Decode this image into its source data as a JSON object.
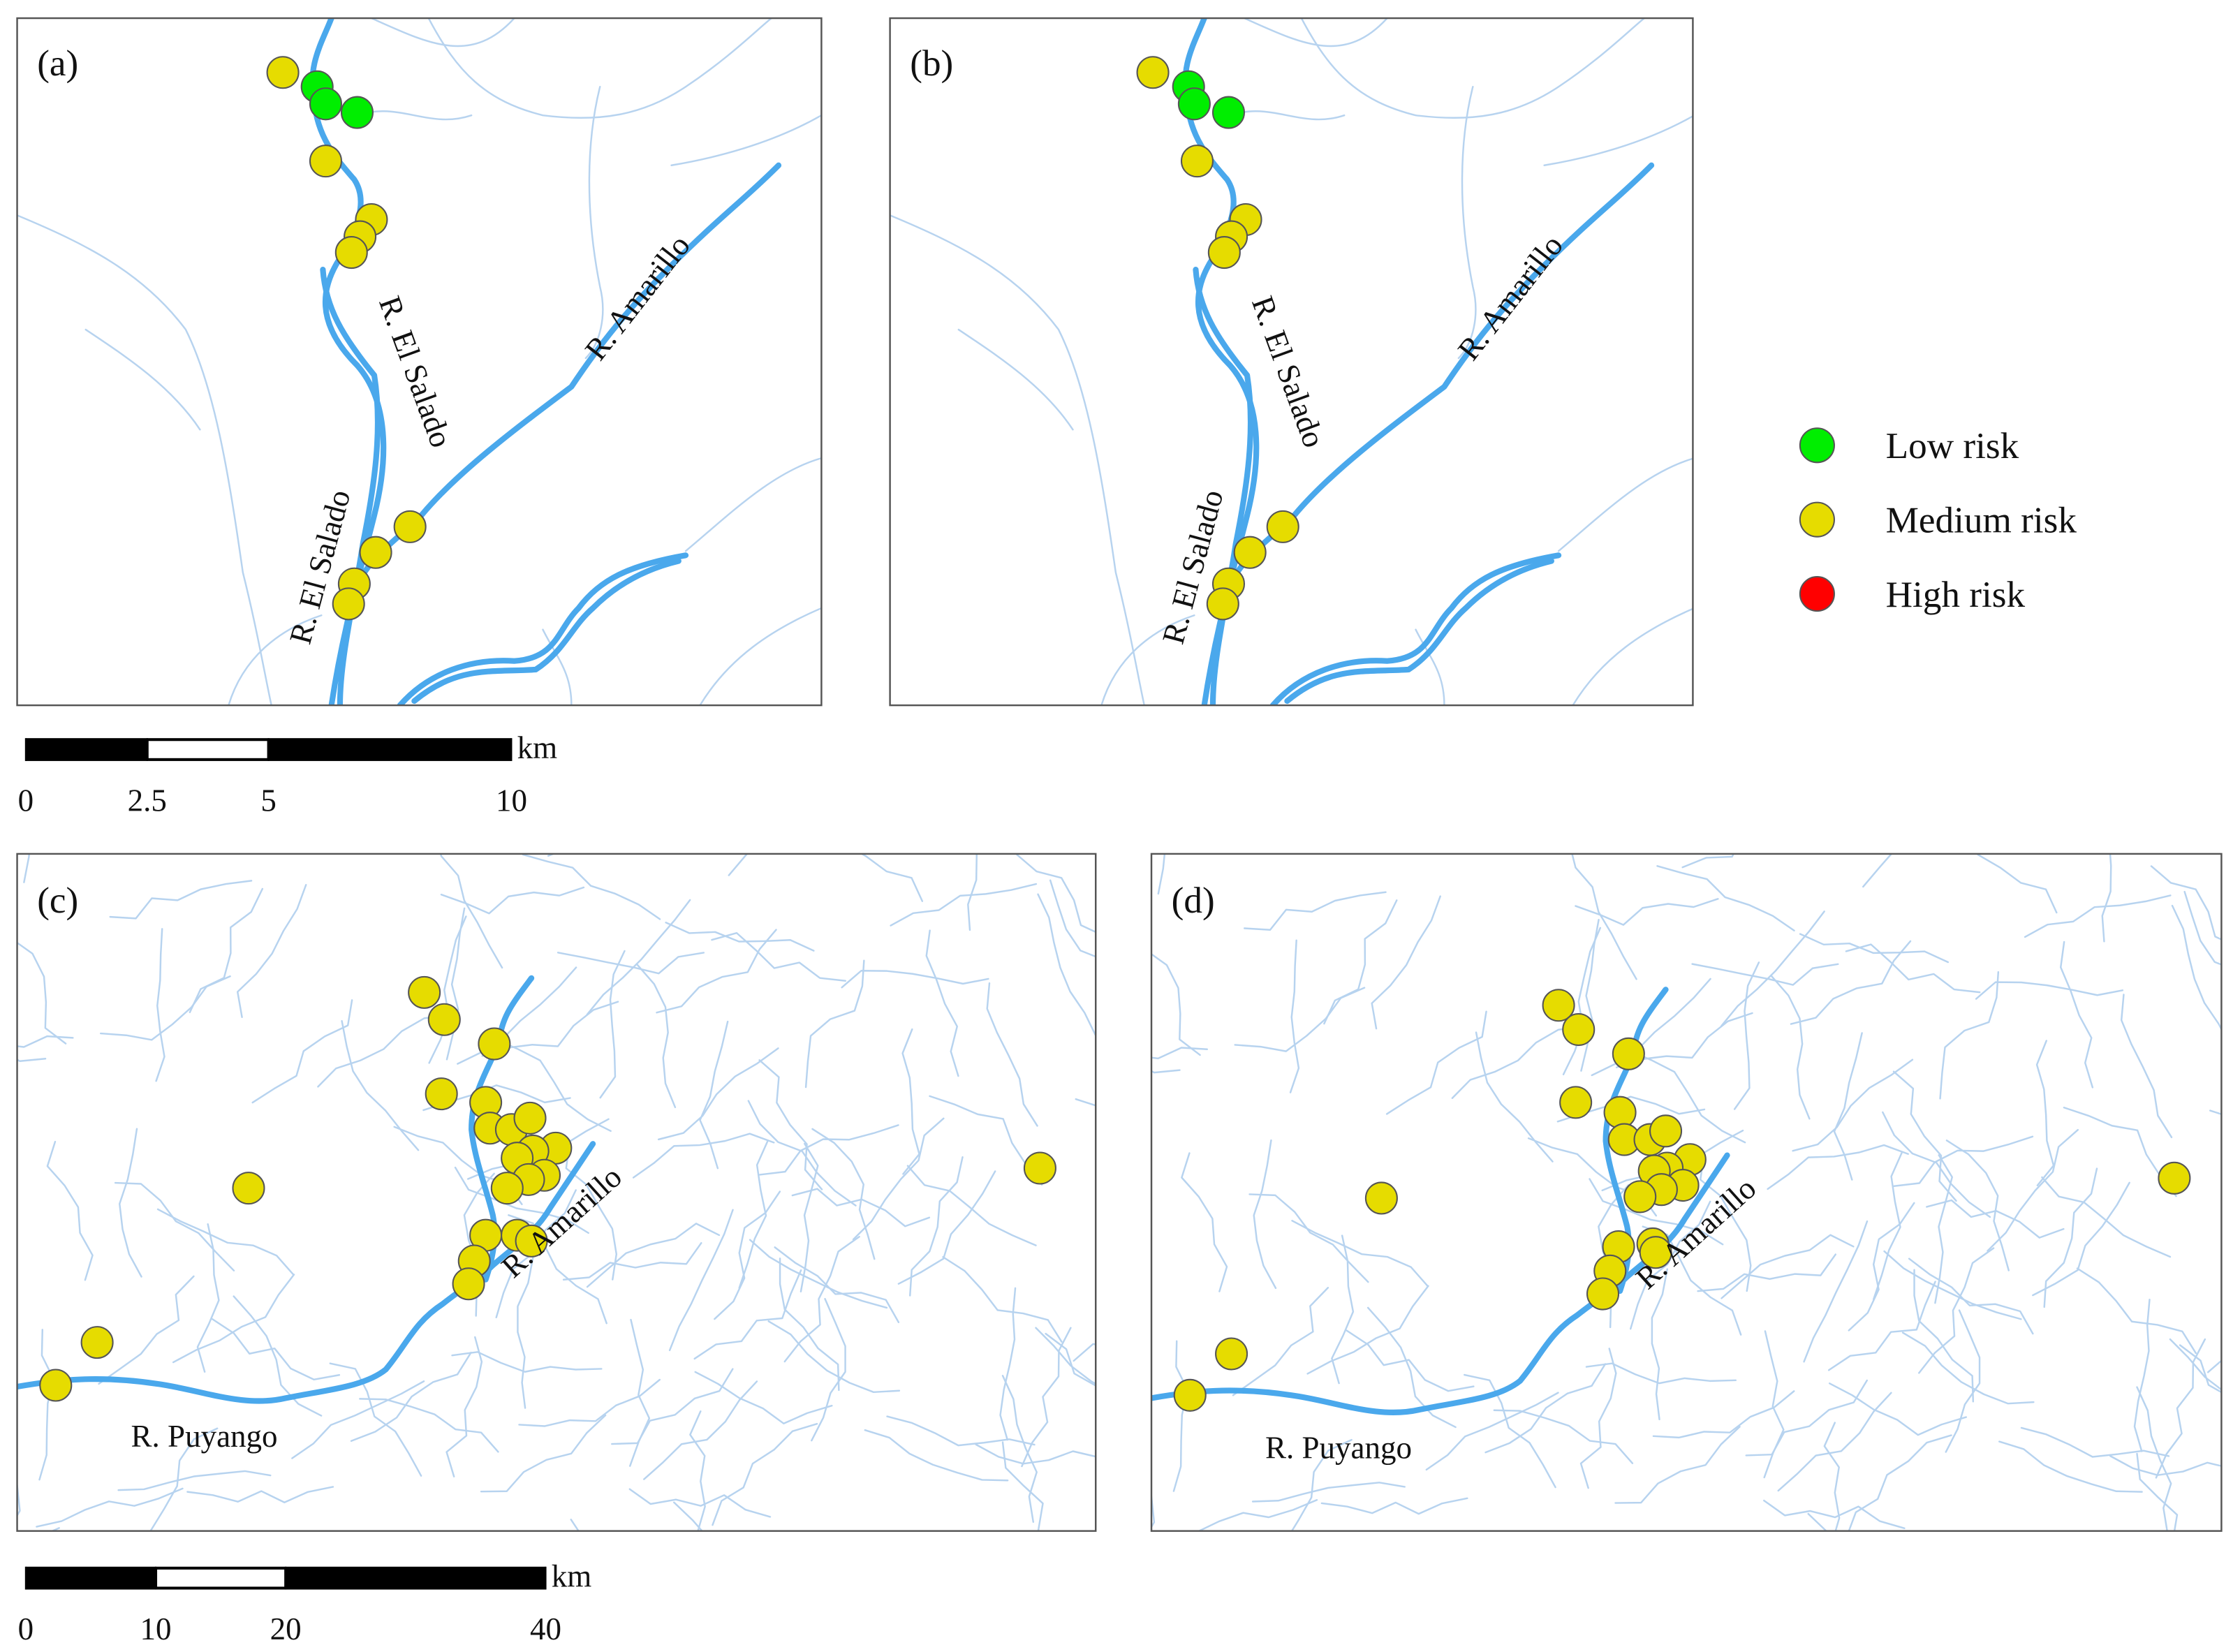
{
  "panels": [
    {
      "label": "(a)",
      "rivers": [
        "R. El Salado",
        "R. El Salado",
        "R. Amarillo"
      ]
    },
    {
      "label": "(b)",
      "rivers": [
        "R. El Salado",
        "R. El Salado",
        "R. Amarillo"
      ]
    },
    {
      "label": "(c)",
      "rivers": [
        "R. Amarillo",
        "R. Puyango"
      ]
    },
    {
      "label": "(d)",
      "rivers": [
        "R. Amarillo",
        "R. Puyango"
      ]
    }
  ],
  "legend": [
    {
      "label": "Low risk",
      "color": "#00ee00"
    },
    {
      "label": "Medium risk",
      "color": "#e6dc00"
    },
    {
      "label": "High risk",
      "color": "#ff0000"
    }
  ],
  "scale_bars": [
    {
      "unit": "km",
      "ticks": [
        0,
        2.5,
        5,
        10
      ]
    },
    {
      "unit": "km",
      "ticks": [
        0,
        10,
        20,
        40
      ]
    }
  ]
}
